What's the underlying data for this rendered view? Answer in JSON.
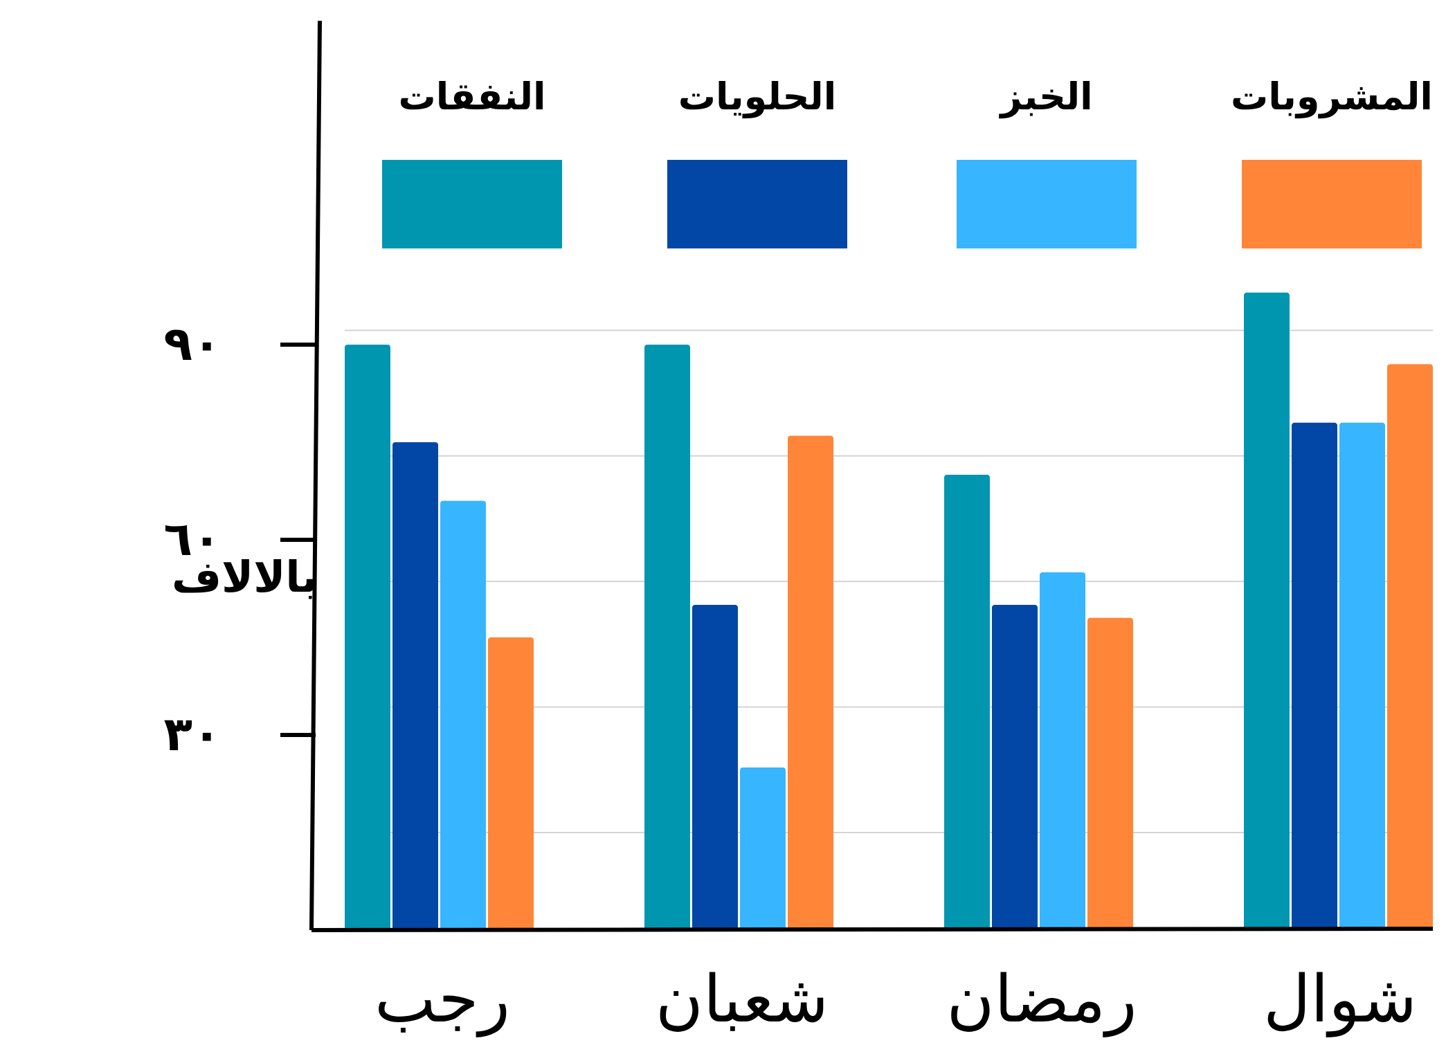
{
  "chart_data": {
    "type": "bar",
    "title": "",
    "xlabel": "",
    "ylabel": "بالالاف",
    "categories": [
      "رجب",
      "شعبان",
      "رمضان",
      "شوال"
    ],
    "series": [
      {
        "name": "النفقات",
        "color": "#0096B0",
        "values": [
          90,
          90,
          70,
          98
        ]
      },
      {
        "name": "الحلويات",
        "color": "#0347A6",
        "values": [
          75,
          50,
          50,
          78
        ]
      },
      {
        "name": "الخبز",
        "color": "#38B5FF",
        "values": [
          66,
          25,
          55,
          78
        ]
      },
      {
        "name": "المشروبات",
        "color": "#FF8539",
        "values": [
          45,
          76,
          48,
          87
        ]
      }
    ],
    "yticks": [
      {
        "value": 30,
        "label": "٣٠"
      },
      {
        "value": 60,
        "label": "٦٠"
      },
      {
        "value": 90,
        "label": "٩٠"
      }
    ],
    "ylim": [
      0,
      100
    ],
    "grid": true,
    "legend": "top"
  }
}
